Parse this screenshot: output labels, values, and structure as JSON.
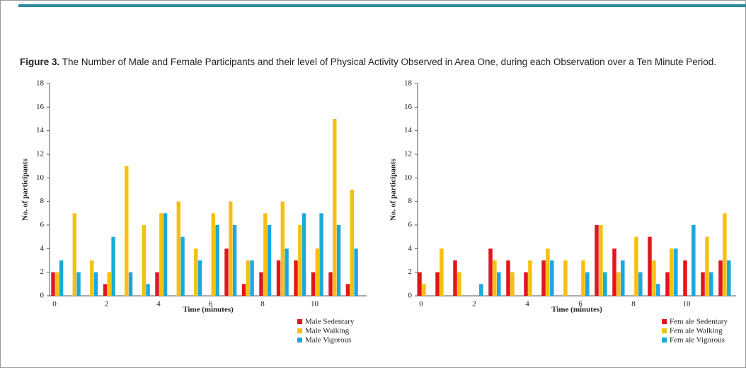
{
  "caption": {
    "label": "Figure 3.",
    "text": "The Number of Male and Female Participants and their level of Physical Activity Observed in Area One, during each Observation over a Ten Minute Period."
  },
  "chart_data": [
    {
      "type": "bar",
      "xlabel": "Time (minutes)",
      "ylabel": "No. of participants",
      "categories": [
        "0",
        null,
        null,
        "2",
        null,
        null,
        "4",
        null,
        null,
        "6",
        null,
        null,
        "8",
        null,
        null,
        "10",
        null,
        null
      ],
      "ylim": [
        0,
        18
      ],
      "yticks": [
        0,
        2,
        4,
        6,
        8,
        10,
        12,
        14,
        16,
        18
      ],
      "series": [
        {
          "name": "Male Sedentary",
          "color": "#e0161c",
          "values": [
            2,
            0,
            0,
            1,
            0,
            0,
            2,
            0,
            0,
            0,
            4,
            1,
            2,
            3,
            3,
            2,
            2,
            1
          ]
        },
        {
          "name": "Male Walking",
          "color": "#f5c010",
          "values": [
            2,
            7,
            3,
            2,
            11,
            6,
            7,
            8,
            4,
            7,
            8,
            3,
            7,
            8,
            6,
            4,
            15,
            9
          ]
        },
        {
          "name": "Male Vigorous",
          "color": "#1ba8dd",
          "values": [
            3,
            2,
            2,
            5,
            2,
            1,
            7,
            5,
            3,
            6,
            6,
            3,
            6,
            4,
            7,
            7,
            6,
            4
          ]
        }
      ]
    },
    {
      "type": "bar",
      "xlabel": "Time (minutes)",
      "ylabel": "No. of participants",
      "categories": [
        "0",
        null,
        null,
        "2",
        null,
        null,
        "4",
        null,
        null,
        "6",
        null,
        null,
        "8",
        null,
        null,
        "10",
        null,
        null
      ],
      "ylim": [
        0,
        18
      ],
      "yticks": [
        0,
        2,
        4,
        6,
        8,
        10,
        12,
        14,
        16,
        18
      ],
      "series": [
        {
          "name": "Fem ale Sedentary",
          "color": "#e0161c",
          "values": [
            2,
            2,
            3,
            0,
            4,
            3,
            2,
            3,
            0,
            0,
            6,
            4,
            0,
            5,
            2,
            3,
            2,
            3
          ]
        },
        {
          "name": "Fem ale Walking",
          "color": "#f5c010",
          "values": [
            1,
            4,
            2,
            0,
            3,
            2,
            3,
            4,
            3,
            3,
            6,
            2,
            5,
            3,
            4,
            0,
            5,
            7
          ]
        },
        {
          "name": "Fem ale Vigorous",
          "color": "#1ba8dd",
          "values": [
            0,
            0,
            0,
            1,
            2,
            0,
            0,
            3,
            0,
            2,
            2,
            3,
            2,
            1,
            4,
            6,
            2,
            3
          ]
        }
      ]
    }
  ]
}
